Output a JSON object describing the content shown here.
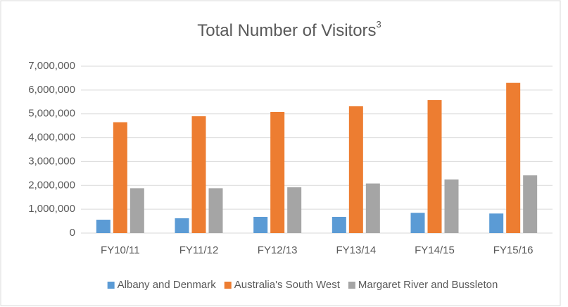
{
  "chart_data": {
    "type": "bar",
    "title": "Total Number of Visitors",
    "title_superscript": "3",
    "categories": [
      "FY10/11",
      "FY11/12",
      "FY12/13",
      "FY13/14",
      "FY14/15",
      "FY15/16"
    ],
    "series": [
      {
        "name": "Albany and Denmark",
        "color": "#5b9bd5",
        "values": [
          560000,
          620000,
          680000,
          680000,
          850000,
          820000
        ]
      },
      {
        "name": "Australia's South West",
        "color": "#ed7d31",
        "values": [
          4650000,
          4900000,
          5080000,
          5320000,
          5580000,
          6300000
        ]
      },
      {
        "name": "Margaret River and Bussleton",
        "color": "#a5a5a5",
        "values": [
          1880000,
          1880000,
          1920000,
          2080000,
          2250000,
          2420000
        ]
      }
    ],
    "ylim": [
      0,
      7000000
    ],
    "yticks": [
      0,
      {
        "value": 1000000,
        "label": "1,000,000"
      },
      {
        "value": 2000000,
        "label": "2,000,000"
      },
      {
        "value": 3000000,
        "label": "3,000,000"
      },
      {
        "value": 4000000,
        "label": "4,000,000"
      },
      {
        "value": 5000000,
        "label": "5,000,000"
      },
      {
        "value": 6000000,
        "label": "6,000,000"
      },
      {
        "value": 7000000,
        "label": "7,000,000"
      }
    ],
    "grid": true,
    "legend": "bottom"
  }
}
